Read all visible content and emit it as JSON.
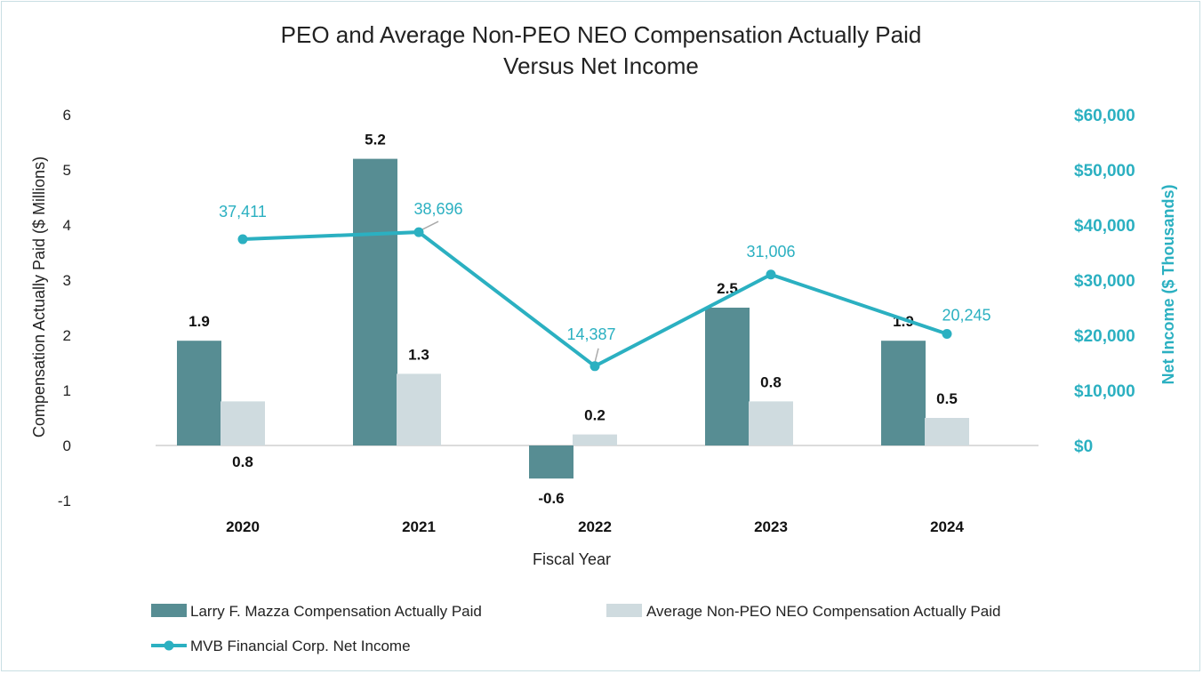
{
  "chart_data": {
    "type": "bar+line",
    "title_lines": [
      "PEO and Average Non-PEO NEO Compensation Actually Paid",
      "Versus Net Income"
    ],
    "xlabel": "Fiscal Year",
    "ylabel": "Compensation Actually Paid ($ Millions)",
    "y2label": "Net Income ($ Thousands)",
    "categories": [
      "2020",
      "2021",
      "2022",
      "2023",
      "2024"
    ],
    "ylim": [
      -1,
      6
    ],
    "yticks": [
      "-1",
      "0",
      "1",
      "2",
      "3",
      "4",
      "5",
      "6"
    ],
    "y2lim": [
      -10000,
      60000
    ],
    "y2ticks": [
      "$0",
      "$10,000",
      "$20,000",
      "$30,000",
      "$40,000",
      "$50,000",
      "$60,000"
    ],
    "grid": false,
    "legend_placement": "bottom",
    "series": [
      {
        "name": "Larry F. Mazza Compensation Actually Paid",
        "type": "bar",
        "axis": "left",
        "color": "#578d93",
        "values": [
          1.9,
          5.2,
          -0.6,
          2.5,
          1.9
        ],
        "labels": [
          "1.9",
          "5.2",
          "-0.6",
          "2.5",
          "1.9"
        ]
      },
      {
        "name": "Average Non-PEO NEO Compensation Actually Paid",
        "type": "bar",
        "axis": "left",
        "color": "#cfdbdf",
        "values": [
          0.8,
          1.3,
          0.2,
          0.8,
          0.5
        ],
        "labels": [
          "0.8",
          "1.3",
          "0.2",
          "0.8",
          "0.5"
        ]
      },
      {
        "name": "MVB Financial Corp. Net Income",
        "type": "line",
        "axis": "right",
        "color": "#2bb0c1",
        "values": [
          37411,
          38696,
          14387,
          31006,
          20245
        ],
        "labels": [
          "37,411",
          "38,696",
          "14,387",
          "31,006",
          "20,245"
        ]
      }
    ]
  }
}
